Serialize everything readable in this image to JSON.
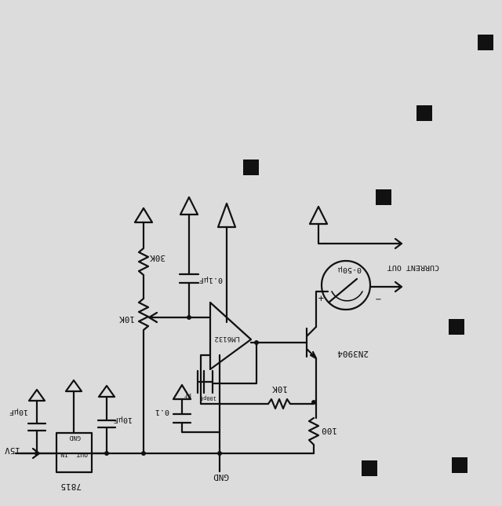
{
  "labels": {
    "r_30k": "30K",
    "pot_10k": "10K",
    "c_01uf_top": "0.1μF",
    "opamp": "LM6132",
    "transistor": "2N3904",
    "r_10k": "10K",
    "r_100": "100",
    "meter": "0-50μ",
    "current_out": "CURRENT OUT",
    "c_10uf": "10μF",
    "c_10uf_b": "10μF",
    "c_01_bottom": "0.1",
    "c_01_bottom_unit": "μF",
    "c_100pf": "100pF",
    "reg_in": "IN",
    "reg_out": "OUT",
    "reg_gnd": "GND",
    "reg_part": "7815",
    "input": "15V",
    "ground": "GND",
    "meter_plus": "+",
    "meter_minus": "−"
  },
  "colors": {
    "paper": "#dcdcdc",
    "ink": "#111111"
  }
}
